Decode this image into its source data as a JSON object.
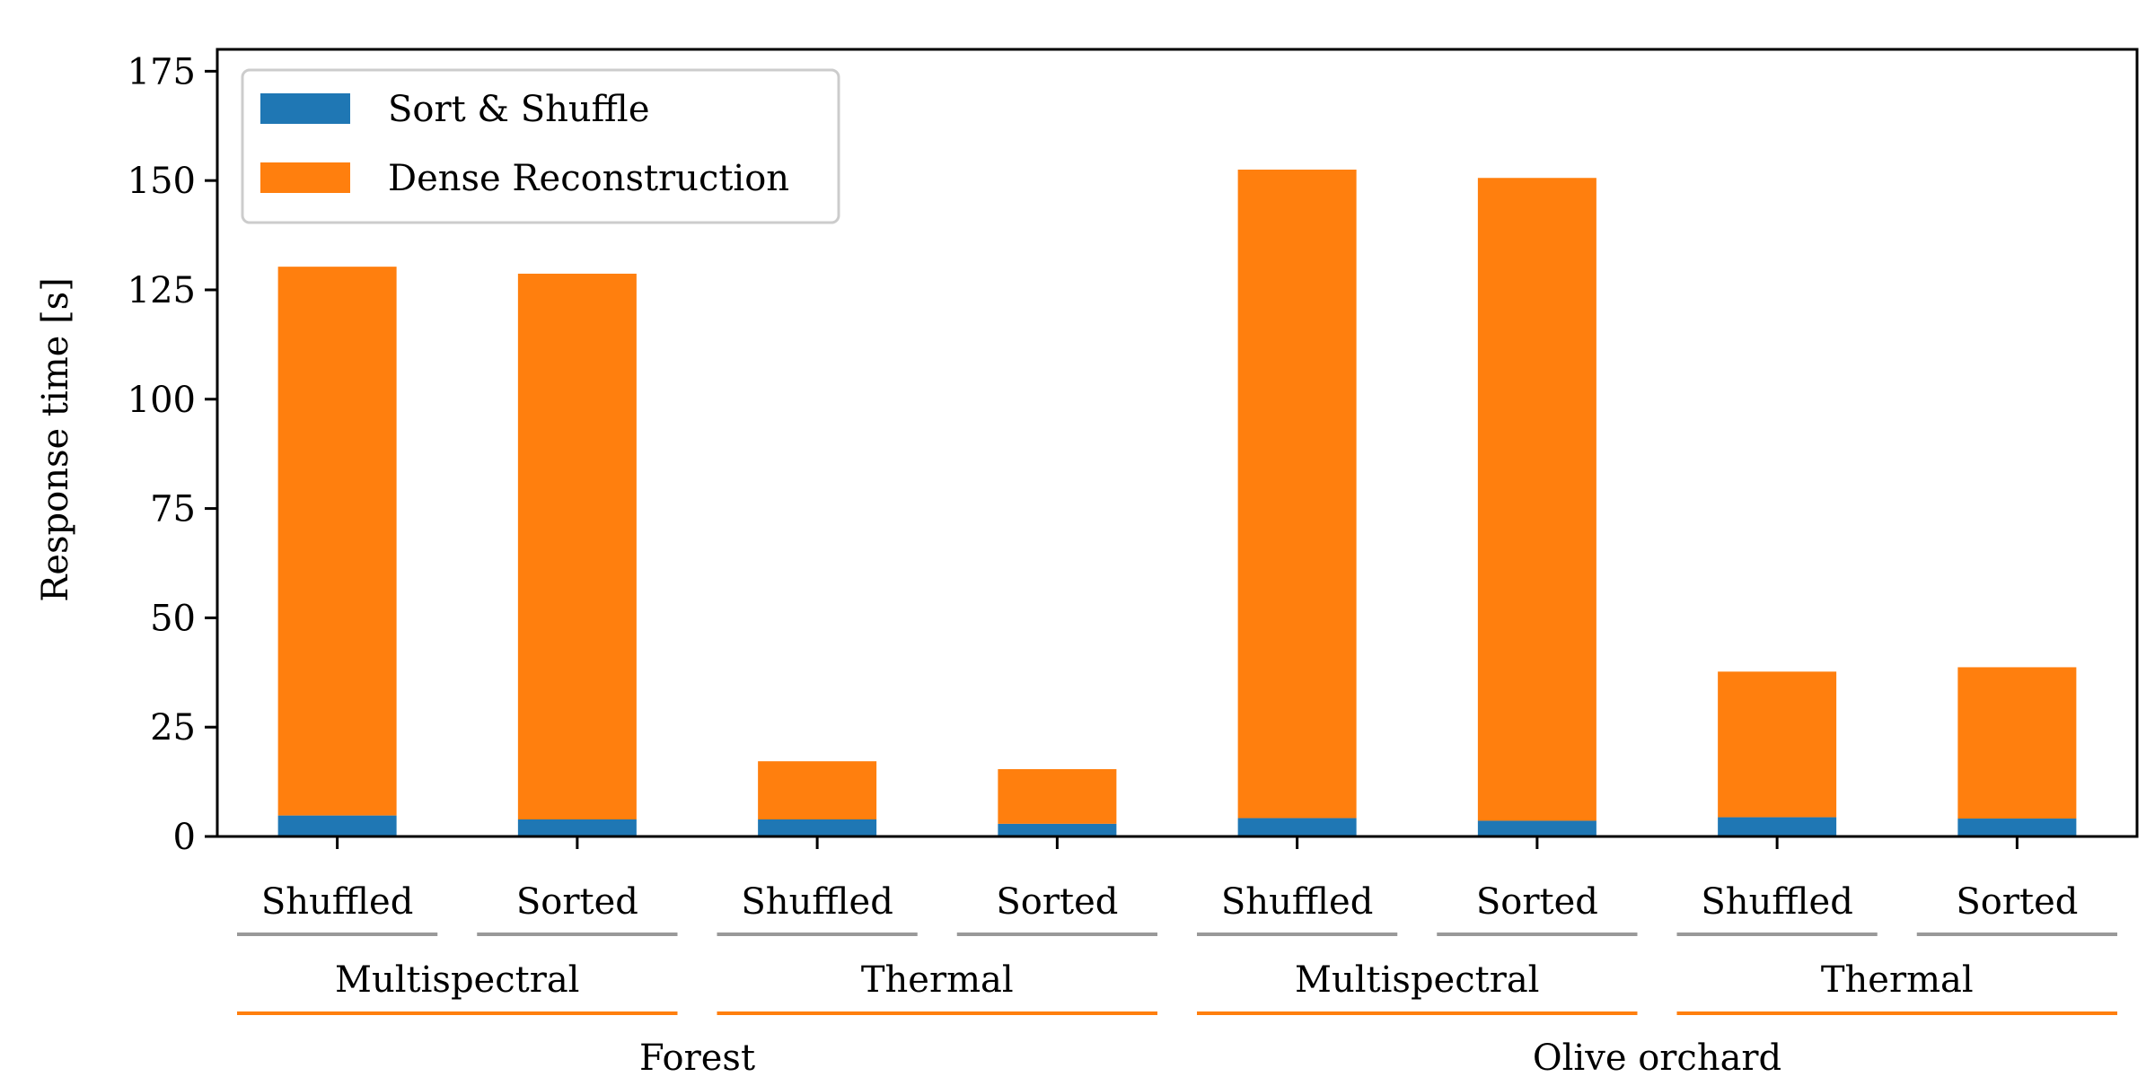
{
  "chart_data": {
    "type": "bar",
    "stacked": true,
    "categories": [
      "Shuffled",
      "Sorted",
      "Shuffled",
      "Sorted",
      "Shuffled",
      "Sorted",
      "Shuffled",
      "Sorted"
    ],
    "groups_level2": [
      "Multispectral",
      "Thermal",
      "Multispectral",
      "Thermal"
    ],
    "groups_level1": [
      "Forest",
      "Olive orchard"
    ],
    "series": [
      {
        "name": "Sort & Shuffle",
        "color": "#1f77b4",
        "values": [
          4.8,
          3.9,
          3.9,
          2.9,
          4.2,
          3.6,
          4.4,
          4.1
        ]
      },
      {
        "name": "Dense Reconstruction",
        "color": "#ff7f0e",
        "values": [
          125.5,
          124.8,
          13.3,
          12.5,
          148.3,
          147.0,
          33.3,
          34.6
        ]
      }
    ],
    "ylabel": "Response time [s]",
    "ylim": [
      0,
      180
    ],
    "yticks": [
      0,
      25,
      50,
      75,
      100,
      125,
      150,
      175
    ],
    "legend_position": "top-left",
    "grid": false,
    "group_line_colors": {
      "level3": "#999999",
      "level2": "#ff7f0e"
    }
  }
}
